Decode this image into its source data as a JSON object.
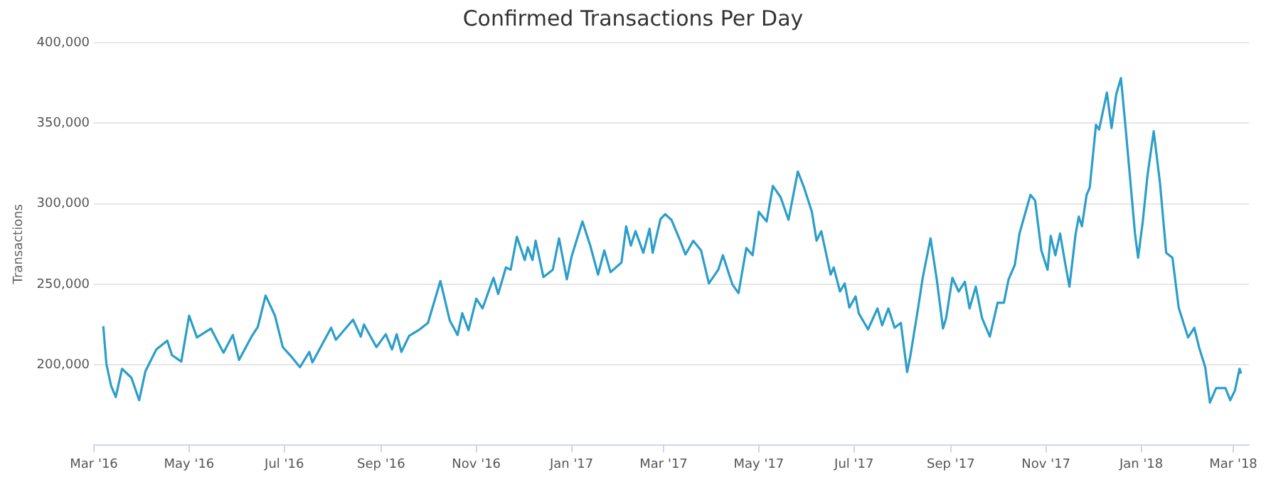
{
  "chart_data": {
    "type": "line",
    "title": "Confirmed Transactions Per Day",
    "ylabel": "Transactions",
    "xlim": [
      "2016-03-01",
      "2018-03-11"
    ],
    "xticks": [
      {
        "value": "2016-03-01",
        "label": "Mar '16"
      },
      {
        "value": "2016-05-01",
        "label": "May '16"
      },
      {
        "value": "2016-07-01",
        "label": "Jul '16"
      },
      {
        "value": "2016-09-01",
        "label": "Sep '16"
      },
      {
        "value": "2016-11-01",
        "label": "Nov '16"
      },
      {
        "value": "2017-01-01",
        "label": "Jan '17"
      },
      {
        "value": "2017-03-01",
        "label": "Mar '17"
      },
      {
        "value": "2017-05-01",
        "label": "May '17"
      },
      {
        "value": "2017-07-01",
        "label": "Jul '17"
      },
      {
        "value": "2017-09-01",
        "label": "Sep '17"
      },
      {
        "value": "2017-11-01",
        "label": "Nov '17"
      },
      {
        "value": "2018-01-01",
        "label": "Jan '18"
      },
      {
        "value": "2018-03-01",
        "label": "Mar '18"
      }
    ],
    "ylim": [
      150000,
      400000
    ],
    "yticks": [
      {
        "value": 150000,
        "label": null
      },
      {
        "value": 200000,
        "label": "200,000"
      },
      {
        "value": 250000,
        "label": "250,000"
      },
      {
        "value": 300000,
        "label": "300,000"
      },
      {
        "value": 350000,
        "label": "350,000"
      },
      {
        "value": 400000,
        "label": "400,000"
      }
    ],
    "grid": "y",
    "legend": false,
    "marker": "none",
    "line_style": "solid",
    "x": [
      "2016-03-07",
      "2016-03-09",
      "2016-03-12",
      "2016-03-15",
      "2016-03-19",
      "2016-03-25",
      "2016-03-30",
      "2016-04-03",
      "2016-04-10",
      "2016-04-17",
      "2016-04-20",
      "2016-04-26",
      "2016-05-01",
      "2016-05-06",
      "2016-05-15",
      "2016-05-23",
      "2016-05-29",
      "2016-06-02",
      "2016-06-10",
      "2016-06-14",
      "2016-06-19",
      "2016-06-25",
      "2016-06-30",
      "2016-07-06",
      "2016-07-11",
      "2016-07-17",
      "2016-07-19",
      "2016-07-31",
      "2016-08-03",
      "2016-08-14",
      "2016-08-19",
      "2016-08-21",
      "2016-08-29",
      "2016-09-04",
      "2016-09-08",
      "2016-09-11",
      "2016-09-14",
      "2016-09-19",
      "2016-09-25",
      "2016-10-01",
      "2016-10-09",
      "2016-10-15",
      "2016-10-20",
      "2016-10-23",
      "2016-10-27",
      "2016-11-01",
      "2016-11-05",
      "2016-11-12",
      "2016-11-15",
      "2016-11-20",
      "2016-11-23",
      "2016-11-27",
      "2016-12-02",
      "2016-12-04",
      "2016-12-07",
      "2016-12-09",
      "2016-12-14",
      "2016-12-20",
      "2016-12-24",
      "2016-12-29",
      "2017-01-01",
      "2017-01-08",
      "2017-01-13",
      "2017-01-18",
      "2017-01-22",
      "2017-01-26",
      "2017-02-02",
      "2017-02-05",
      "2017-02-08",
      "2017-02-11",
      "2017-02-16",
      "2017-02-20",
      "2017-02-22",
      "2017-02-27",
      "2017-03-02",
      "2017-03-06",
      "2017-03-11",
      "2017-03-15",
      "2017-03-20",
      "2017-03-25",
      "2017-03-30",
      "2017-04-05",
      "2017-04-08",
      "2017-04-14",
      "2017-04-18",
      "2017-04-23",
      "2017-04-27",
      "2017-05-01",
      "2017-05-06",
      "2017-05-10",
      "2017-05-15",
      "2017-05-20",
      "2017-05-26",
      "2017-05-30",
      "2017-06-04",
      "2017-06-07",
      "2017-06-10",
      "2017-06-16",
      "2017-06-18",
      "2017-06-22",
      "2017-06-25",
      "2017-06-28",
      "2017-07-02",
      "2017-07-04",
      "2017-07-10",
      "2017-07-16",
      "2017-07-19",
      "2017-07-23",
      "2017-07-27",
      "2017-07-31",
      "2017-08-04",
      "2017-08-06",
      "2017-08-11",
      "2017-08-14",
      "2017-08-19",
      "2017-08-23",
      "2017-08-27",
      "2017-08-29",
      "2017-09-02",
      "2017-09-06",
      "2017-09-10",
      "2017-09-13",
      "2017-09-17",
      "2017-09-21",
      "2017-09-26",
      "2017-10-01",
      "2017-10-05",
      "2017-10-08",
      "2017-10-12",
      "2017-10-15",
      "2017-10-22",
      "2017-10-25",
      "2017-10-29",
      "2017-11-02",
      "2017-11-04",
      "2017-11-07",
      "2017-11-10",
      "2017-11-14",
      "2017-11-16",
      "2017-11-20",
      "2017-11-22",
      "2017-11-24",
      "2017-11-27",
      "2017-11-29",
      "2017-12-03",
      "2017-12-05",
      "2017-12-10",
      "2017-12-13",
      "2017-12-16",
      "2017-12-19",
      "2017-12-22",
      "2017-12-28",
      "2017-12-30",
      "2018-01-02",
      "2018-01-05",
      "2018-01-09",
      "2018-01-13",
      "2018-01-17",
      "2018-01-21",
      "2018-01-25",
      "2018-01-31",
      "2018-02-04",
      "2018-02-07",
      "2018-02-11",
      "2018-02-14",
      "2018-02-18",
      "2018-02-24",
      "2018-02-27",
      "2018-03-02",
      "2018-03-05",
      "2018-03-06"
    ],
    "series": [
      {
        "color": "#2b9ec9",
        "values": [
          224000,
          200500,
          187000,
          180000,
          197500,
          192000,
          178000,
          196000,
          209500,
          215000,
          206000,
          202000,
          230500,
          217000,
          222500,
          207500,
          218500,
          203000,
          217500,
          223500,
          243000,
          230500,
          211000,
          204500,
          198500,
          208000,
          201500,
          223000,
          215500,
          228000,
          217500,
          225000,
          211000,
          219000,
          209500,
          219000,
          208000,
          218000,
          221500,
          226000,
          252000,
          227500,
          218500,
          232000,
          221500,
          241000,
          235000,
          254000,
          244000,
          260500,
          259000,
          279500,
          265000,
          273000,
          265000,
          277000,
          254500,
          259000,
          278500,
          253000,
          267000,
          289000,
          274000,
          256000,
          271000,
          257500,
          263500,
          286000,
          274000,
          283000,
          269500,
          284500,
          269500,
          290500,
          293500,
          290000,
          278500,
          268500,
          277000,
          271000,
          250500,
          259000,
          268000,
          250000,
          244500,
          272500,
          268000,
          295000,
          289000,
          311000,
          304000,
          290000,
          320000,
          310000,
          295000,
          277000,
          283000,
          256000,
          260500,
          245500,
          250500,
          235500,
          242500,
          232000,
          222000,
          235000,
          224500,
          235000,
          223000,
          226000,
          195500,
          205000,
          235000,
          254000,
          278500,
          253000,
          222500,
          229000,
          254000,
          245500,
          251500,
          235000,
          248500,
          229000,
          217500,
          238500,
          238500,
          253000,
          262000,
          281500,
          305500,
          302000,
          271000,
          259000,
          280000,
          268000,
          281500,
          259000,
          248500,
          281500,
          292000,
          286000,
          305500,
          310000,
          349000,
          346000,
          369000,
          347000,
          368000,
          378000,
          347000,
          281500,
          266500,
          289000,
          317500,
          345000,
          313000,
          269500,
          266500,
          235500,
          217000,
          223000,
          211000,
          198500,
          176500,
          185500,
          185500,
          178000,
          184000,
          197500,
          194500
        ]
      }
    ]
  }
}
